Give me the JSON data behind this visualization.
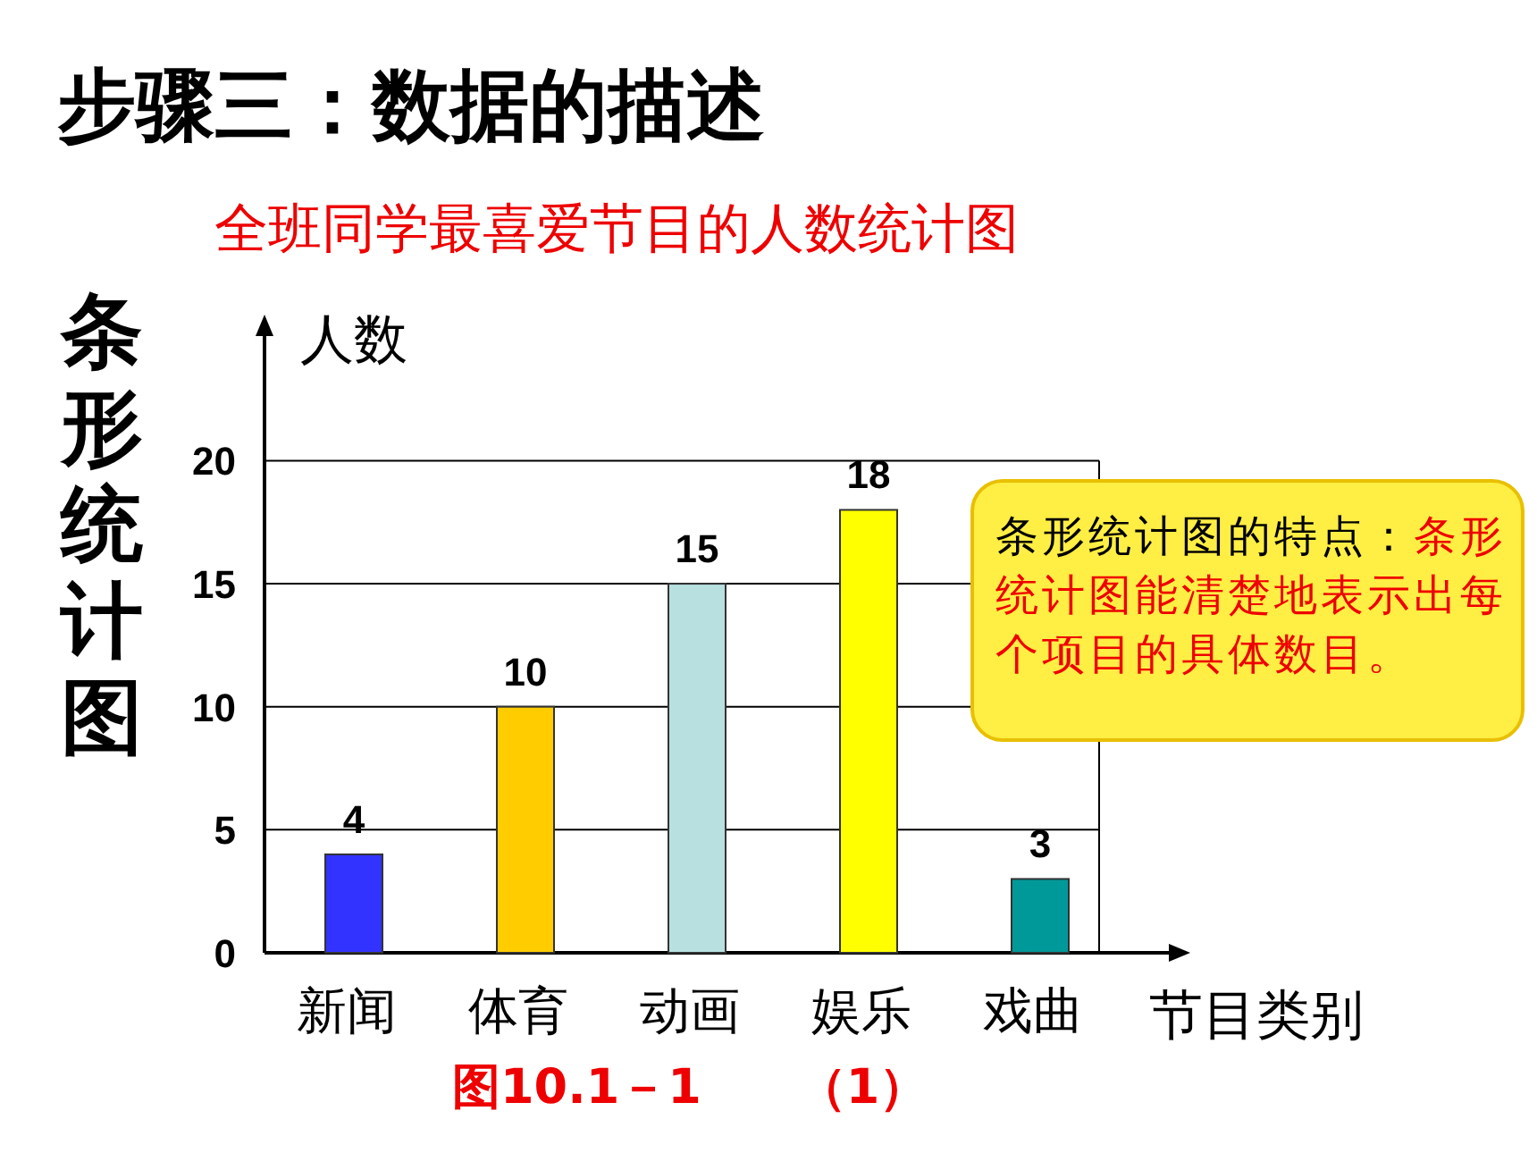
{
  "chart_data": {
    "type": "bar",
    "title": "步骤三：数据的描述",
    "subtitle": "全班同学最喜爱节目的人数统计图",
    "xlabel": "节目类别",
    "ylabel": "人数",
    "categories": [
      "新闻",
      "体育",
      "动画",
      "娱乐",
      "戏曲"
    ],
    "values": [
      4,
      10,
      15,
      18,
      3
    ],
    "colors": [
      "#3333ff",
      "#ffcc00",
      "#b8e0e0",
      "#ffff00",
      "#009999"
    ],
    "ylim": [
      0,
      25.5
    ],
    "yticks": [
      0,
      5,
      10,
      15,
      20
    ],
    "grid": "y",
    "data_labels": true,
    "annotations": [
      "条形统计图",
      "条形统计图的特点：",
      "条形统计图能清楚地表示出每个项目的具体数目。",
      "图10.1－1　　（1）"
    ]
  }
}
